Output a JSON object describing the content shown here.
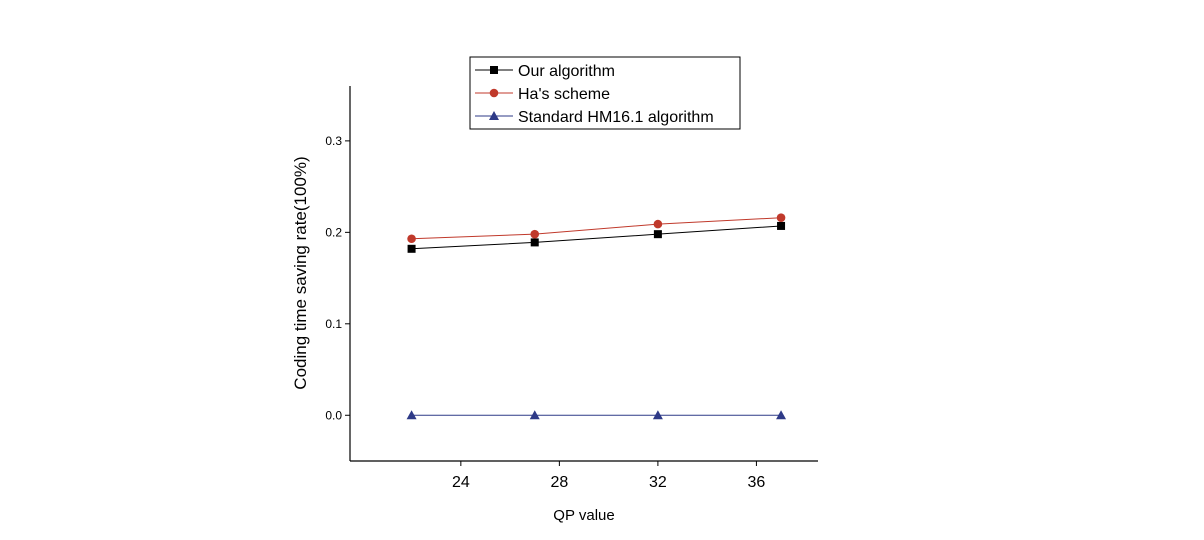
{
  "chart_data": {
    "type": "line",
    "title": "",
    "xlabel": "QP value",
    "ylabel": "Coding time saving rate(100%)",
    "x": [
      22,
      27,
      32,
      37
    ],
    "xlim": [
      19.5,
      38.5
    ],
    "ylim": [
      -0.05,
      0.36
    ],
    "xticks": [
      24,
      28,
      32,
      36
    ],
    "yticks": [
      0.0,
      0.1,
      0.2,
      0.3
    ],
    "xtick_labels": [
      "24",
      "28",
      "32",
      "36"
    ],
    "ytick_labels": [
      "0.0",
      "0.1",
      "0.2",
      "0.3"
    ],
    "grid": false,
    "legend_position": "top",
    "series": [
      {
        "name": "Our algorithm",
        "values": [
          0.182,
          0.189,
          0.198,
          0.207
        ],
        "color": "#000000",
        "marker": "square"
      },
      {
        "name": "Ha's scheme",
        "values": [
          0.193,
          0.198,
          0.209,
          0.216
        ],
        "color": "#c0392b",
        "marker": "circle"
      },
      {
        "name": "Standard HM16.1 algorithm",
        "values": [
          0.0,
          0.0,
          0.0,
          0.0
        ],
        "color": "#2e3a87",
        "marker": "triangle"
      }
    ]
  }
}
